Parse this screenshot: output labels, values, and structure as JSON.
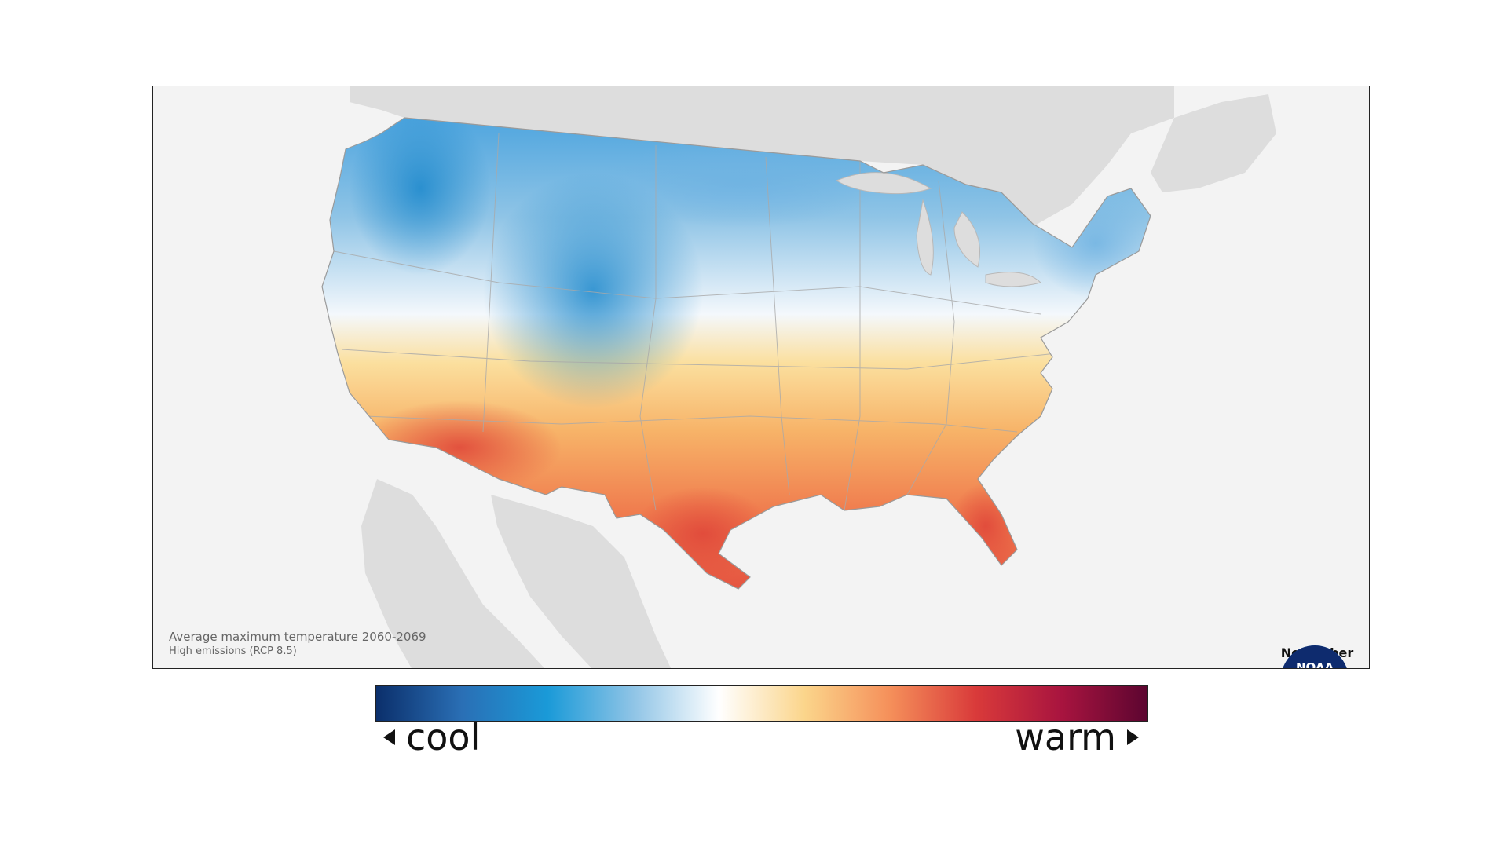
{
  "map": {
    "caption_title": "Average maximum temperature 2060-2069",
    "caption_subtitle": "High emissions (RCP 8.5)",
    "month": "November",
    "logo_text": "NOAA"
  },
  "legend": {
    "low_label": "cool",
    "high_label": "warm",
    "colors": [
      "#0b2f6b",
      "#2a6fb5",
      "#1a9ad8",
      "#8fc4e6",
      "#ffffff",
      "#fbd58b",
      "#f58f5a",
      "#d93a3a",
      "#a8143f",
      "#5c0530"
    ]
  },
  "colors": {
    "land_background": "#dddddd",
    "ocean_background": "#f3f3f3",
    "frame": "#222222",
    "noaa_blue": "#1a74c4",
    "noaa_navy": "#0e2b6e"
  }
}
